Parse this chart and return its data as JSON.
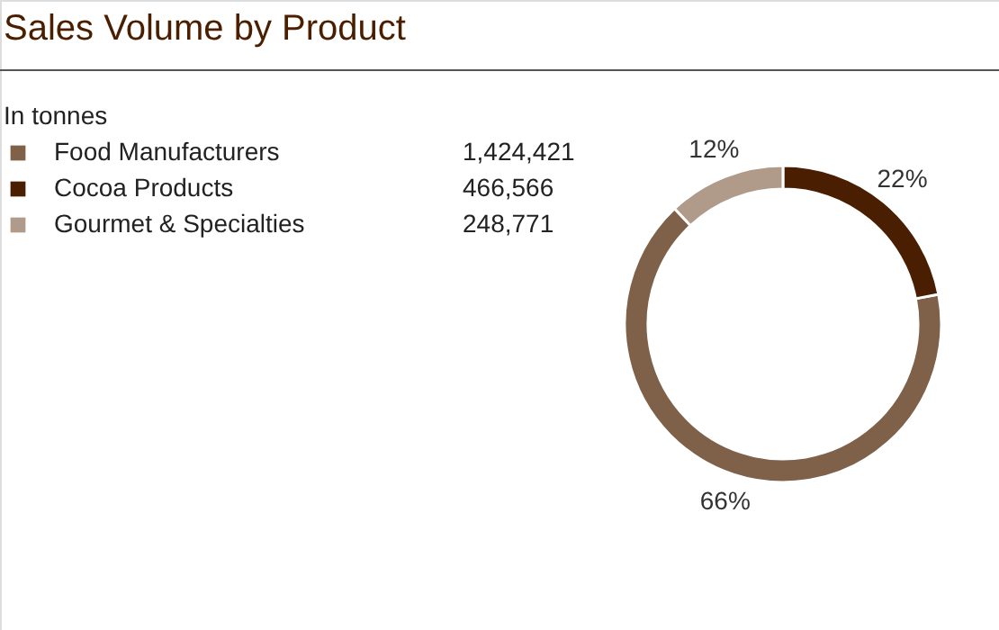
{
  "chart_data": {
    "type": "donut",
    "title": "Sales Volume by Product",
    "legend_title": "In tonnes",
    "categories": [
      "Food Manufacturers",
      "Cocoa Products",
      "Gourmet & Specialties"
    ],
    "values": [
      66,
      22,
      12
    ],
    "colors": [
      "#7f6048",
      "#4a1e00",
      "#b09a8a"
    ],
    "value_labels": [
      "66%",
      "22%",
      "12%"
    ],
    "annotations": [
      "1,424,421",
      "466,566",
      "248,771"
    ],
    "legend": "top left"
  }
}
